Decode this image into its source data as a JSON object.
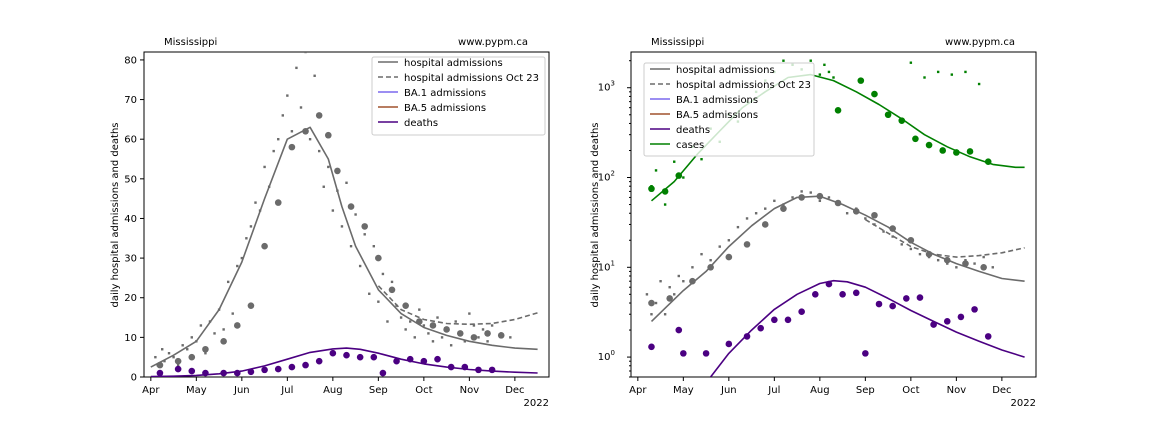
{
  "chart_data": [
    {
      "type": "line",
      "region": "Mississippi",
      "source": "www.pypm.ca",
      "title": "",
      "xlabel": "",
      "ylabel": "daily hospital admissions and deaths",
      "year_label": "2022",
      "scale": "linear",
      "x_ticks": [
        "Apr",
        "May",
        "Jun",
        "Jul",
        "Aug",
        "Sep",
        "Oct",
        "Nov",
        "Dec"
      ],
      "ylim": [
        0,
        82
      ],
      "y_ticks": [
        0,
        10,
        20,
        30,
        40,
        50,
        60,
        70,
        80
      ],
      "legend_position": "top-right",
      "grid": false,
      "legend": [
        {
          "label": "hospital admissions",
          "color": "#6b6b6b",
          "style": "solid"
        },
        {
          "label": "hospital admissions Oct 23",
          "color": "#6b6b6b",
          "style": "dashed"
        },
        {
          "label": "BA.1 admissions",
          "color": "#7b68ee",
          "style": "solid"
        },
        {
          "label": "BA.5 admissions",
          "color": "#a0522d",
          "style": "solid"
        },
        {
          "label": "deaths",
          "color": "#4b0082",
          "style": "solid"
        }
      ],
      "series": [
        {
          "name": "hospital admissions",
          "kind": "line",
          "color": "#6b6b6b",
          "x": [
            0.0,
            0.5,
            1.0,
            1.5,
            2.0,
            2.5,
            3.0,
            3.5,
            3.9,
            4.2,
            4.5,
            5.0,
            5.5,
            6.0,
            6.5,
            7.0,
            7.5,
            8.0,
            8.5
          ],
          "y": [
            2.5,
            5.5,
            9,
            17,
            29,
            45,
            60,
            63,
            55,
            43,
            33,
            22,
            16,
            12.5,
            10.5,
            9,
            8,
            7.3,
            7
          ]
        },
        {
          "name": "hospital admissions Oct 23",
          "kind": "dashed",
          "color": "#6b6b6b",
          "x": [
            5.0,
            5.5,
            6.0,
            6.5,
            7.0,
            7.5,
            8.0,
            8.5
          ],
          "y": [
            23,
            17,
            14.5,
            13.5,
            13.3,
            13.5,
            14.5,
            16.2
          ]
        },
        {
          "name": "deaths",
          "kind": "line",
          "color": "#4b0082",
          "x": [
            0.0,
            0.5,
            1.0,
            1.5,
            2.0,
            2.5,
            3.0,
            3.5,
            4.0,
            4.3,
            4.6,
            5.0,
            5.5,
            6.0,
            6.5,
            7.0,
            7.5,
            8.0,
            8.5
          ],
          "y": [
            0.1,
            0.2,
            0.4,
            0.8,
            1.5,
            2.8,
            4.5,
            6.2,
            7.1,
            7.3,
            7.0,
            6.0,
            4.5,
            3.3,
            2.5,
            1.9,
            1.5,
            1.2,
            1.0
          ]
        },
        {
          "name": "hospital admissions daily",
          "kind": "small-dots",
          "color": "#6b6b6b",
          "x": [
            0.1,
            0.15,
            0.25,
            0.3,
            0.4,
            0.5,
            0.6,
            0.7,
            0.8,
            0.9,
            1.0,
            1.1,
            1.2,
            1.3,
            1.4,
            1.5,
            1.6,
            1.7,
            1.8,
            1.9,
            2.0,
            2.1,
            2.2,
            2.3,
            2.4,
            2.5,
            2.6,
            2.7,
            2.8,
            2.9,
            3.0,
            3.1,
            3.2,
            3.3,
            3.4,
            3.5,
            3.6,
            3.7,
            3.8,
            3.9,
            4.0,
            4.1,
            4.2,
            4.3,
            4.4,
            4.5,
            4.6,
            4.7,
            4.8,
            4.9,
            5.0,
            5.1,
            5.2,
            5.3,
            5.4,
            5.5,
            5.6,
            5.7,
            5.8,
            5.9,
            6.0,
            6.1,
            6.2,
            6.3,
            6.4,
            6.5,
            6.6,
            6.7,
            6.8,
            6.9,
            7.0,
            7.1,
            7.2,
            7.3,
            7.4,
            7.5,
            7.7,
            7.9
          ],
          "y": [
            5,
            3,
            7,
            4,
            6,
            5,
            3,
            8,
            7,
            10,
            9,
            13,
            6,
            14,
            11,
            17,
            12,
            24,
            16,
            28,
            30,
            35,
            38,
            44,
            42,
            53,
            48,
            57,
            60,
            66,
            71,
            62,
            78,
            68,
            82,
            60,
            76,
            57,
            48,
            53,
            42,
            47,
            38,
            49,
            33,
            41,
            28,
            36,
            21,
            33,
            19,
            26,
            14,
            24,
            18,
            15,
            12,
            14,
            10,
            17,
            13,
            11,
            9,
            15,
            10,
            12,
            8,
            14,
            11,
            9,
            16,
            13,
            10,
            12,
            9,
            13,
            11,
            10
          ]
        },
        {
          "name": "hospital admissions weekly",
          "kind": "big-dots",
          "color": "#6b6b6b",
          "x": [
            0.2,
            0.6,
            0.9,
            1.2,
            1.6,
            1.9,
            2.2,
            2.5,
            2.8,
            3.1,
            3.4,
            3.7,
            3.9,
            4.1,
            4.4,
            4.7,
            5.0,
            5.3,
            5.6,
            5.9,
            6.2,
            6.5,
            6.8,
            7.1,
            7.4,
            7.7
          ],
          "y": [
            3,
            4,
            5,
            7,
            9,
            13,
            18,
            33,
            44,
            58,
            62,
            66,
            61,
            52,
            43,
            38,
            30,
            22,
            18,
            14,
            13,
            12,
            11,
            10,
            11,
            10.5
          ]
        },
        {
          "name": "deaths weekly",
          "kind": "big-dots",
          "color": "#4b0082",
          "x": [
            0.2,
            0.6,
            0.9,
            1.2,
            1.6,
            1.9,
            2.2,
            2.5,
            2.8,
            3.1,
            3.4,
            3.7,
            4.0,
            4.3,
            4.6,
            4.9,
            5.1,
            5.4,
            5.7,
            6.0,
            6.3,
            6.6,
            6.9,
            7.2,
            7.5
          ],
          "y": [
            1,
            2,
            1.5,
            1,
            1,
            1,
            1.3,
            1.8,
            2,
            2.5,
            3,
            4,
            6,
            5.5,
            5,
            5,
            1,
            4,
            4.5,
            4,
            4.5,
            2.5,
            2.5,
            1.8,
            1.8
          ]
        }
      ]
    },
    {
      "type": "line",
      "region": "Mississippi",
      "source": "www.pypm.ca",
      "title": "",
      "xlabel": "",
      "ylabel": "daily hospital admissions and deaths",
      "year_label": "2022",
      "scale": "log",
      "x_ticks": [
        "Apr",
        "May",
        "Jun",
        "Jul",
        "Aug",
        "Sep",
        "Oct",
        "Nov",
        "Dec"
      ],
      "ylim": [
        0.6,
        2500
      ],
      "y_ticks": [
        "10^0",
        "10^1",
        "10^2",
        "10^3"
      ],
      "legend_position": "top-left",
      "grid": false,
      "legend": [
        {
          "label": "hospital admissions",
          "color": "#6b6b6b",
          "style": "solid"
        },
        {
          "label": "hospital admissions Oct 23",
          "color": "#6b6b6b",
          "style": "dashed"
        },
        {
          "label": "BA.1 admissions",
          "color": "#7b68ee",
          "style": "solid"
        },
        {
          "label": "BA.5 admissions",
          "color": "#a0522d",
          "style": "solid"
        },
        {
          "label": "deaths",
          "color": "#4b0082",
          "style": "solid"
        },
        {
          "label": "cases",
          "color": "#008000",
          "style": "solid"
        }
      ],
      "series": [
        {
          "name": "cases",
          "kind": "line",
          "color": "#008000",
          "x": [
            0.3,
            0.8,
            1.3,
            1.8,
            2.3,
            2.8,
            3.3,
            3.8,
            4.3,
            4.8,
            5.3,
            5.8,
            6.3,
            6.8,
            7.3,
            7.8,
            8.3,
            8.5
          ],
          "y": [
            55,
            90,
            180,
            330,
            600,
            900,
            1300,
            1400,
            1200,
            900,
            650,
            450,
            300,
            220,
            170,
            140,
            130,
            130
          ]
        },
        {
          "name": "hospital admissions",
          "kind": "line",
          "color": "#6b6b6b",
          "x": [
            0.3,
            0.6,
            1.0,
            1.5,
            2.0,
            2.5,
            3.0,
            3.5,
            4.0,
            4.5,
            5.0,
            5.5,
            6.0,
            6.5,
            7.0,
            7.5,
            8.0,
            8.5
          ],
          "y": [
            2.5,
            3.5,
            5.5,
            9,
            17,
            29,
            45,
            60,
            62,
            50,
            38,
            28,
            19,
            14,
            11,
            9,
            7.5,
            7
          ]
        },
        {
          "name": "hospital admissions Oct 23",
          "kind": "dashed",
          "color": "#6b6b6b",
          "x": [
            5.0,
            5.5,
            6.0,
            6.5,
            7.0,
            7.5,
            8.0,
            8.5
          ],
          "y": [
            34,
            24,
            17,
            14,
            13,
            13.5,
            14.5,
            16.5
          ]
        },
        {
          "name": "deaths",
          "kind": "line",
          "color": "#4b0082",
          "x": [
            1.6,
            2.0,
            2.5,
            3.0,
            3.5,
            4.0,
            4.3,
            4.6,
            5.0,
            5.5,
            6.0,
            6.5,
            7.0,
            7.5,
            8.0,
            8.5
          ],
          "y": [
            0.6,
            1.1,
            2.0,
            3.4,
            5.0,
            6.6,
            7.1,
            6.9,
            6.0,
            4.5,
            3.3,
            2.5,
            1.9,
            1.5,
            1.2,
            1.0
          ]
        },
        {
          "name": "cases daily",
          "kind": "small-dots",
          "color": "#008000",
          "x": [
            0.3,
            0.4,
            0.6,
            0.8,
            1.0,
            1.2,
            1.4,
            1.6,
            1.8,
            2.0,
            2.2,
            2.4,
            2.6,
            2.8,
            3.0,
            3.2,
            3.4,
            3.6,
            3.8,
            4.0,
            4.1,
            4.2,
            4.3,
            6.0,
            6.3,
            6.6,
            6.9,
            7.2,
            7.5
          ],
          "y": [
            80,
            120,
            50,
            150,
            100,
            220,
            160,
            350,
            250,
            500,
            420,
            700,
            900,
            1200,
            1500,
            2000,
            1800,
            1600,
            2000,
            1400,
            1800,
            1500,
            1300,
            1900,
            1300,
            1500,
            1400,
            1500,
            1100
          ]
        },
        {
          "name": "cases weekly",
          "kind": "big-dots",
          "color": "#008000",
          "x": [
            0.3,
            0.6,
            0.9,
            4.4,
            4.9,
            5.2,
            5.5,
            5.8,
            6.1,
            6.4,
            6.7,
            7.0,
            7.3,
            7.7
          ],
          "y": [
            75,
            70,
            105,
            560,
            1200,
            850,
            500,
            430,
            270,
            230,
            200,
            190,
            195,
            150
          ]
        },
        {
          "name": "hospital admissions daily",
          "kind": "small-dots",
          "color": "#6b6b6b",
          "x": [
            0.2,
            0.3,
            0.4,
            0.5,
            0.6,
            0.7,
            0.8,
            0.9,
            1.0,
            1.2,
            1.4,
            1.6,
            1.8,
            2.0,
            2.2,
            2.4,
            2.6,
            2.8,
            3.0,
            3.2,
            3.4,
            3.6,
            3.8,
            4.0,
            4.2,
            4.4,
            4.6,
            4.8,
            5.0,
            5.2,
            5.4,
            5.6,
            5.8,
            6.0,
            6.2,
            6.4,
            6.6,
            6.8,
            7.0,
            7.2,
            7.4,
            7.6,
            7.8
          ],
          "y": [
            5,
            3,
            4,
            7,
            3,
            6,
            5,
            8,
            7,
            10,
            14,
            12,
            17,
            20,
            28,
            35,
            40,
            45,
            55,
            50,
            60,
            70,
            68,
            55,
            60,
            50,
            40,
            45,
            35,
            30,
            25,
            22,
            18,
            16,
            14,
            13,
            12,
            11,
            10,
            12,
            11,
            13,
            10
          ]
        },
        {
          "name": "hospital admissions weekly",
          "kind": "big-dots",
          "color": "#6b6b6b",
          "x": [
            0.3,
            0.7,
            1.2,
            1.6,
            2.0,
            2.4,
            2.8,
            3.2,
            3.6,
            4.0,
            4.4,
            4.8,
            5.2,
            5.6,
            6.0,
            6.4,
            6.8,
            7.2,
            7.6
          ],
          "y": [
            4,
            4.5,
            7,
            10,
            13,
            18,
            30,
            45,
            60,
            62,
            52,
            42,
            38,
            27,
            20,
            14,
            12,
            11,
            10
          ]
        },
        {
          "name": "deaths weekly",
          "kind": "big-dots",
          "color": "#4b0082",
          "x": [
            0.3,
            0.9,
            1.0,
            1.5,
            2.0,
            2.4,
            2.7,
            3.0,
            3.3,
            3.6,
            3.9,
            4.2,
            4.5,
            4.8,
            5.0,
            5.3,
            5.6,
            5.9,
            6.2,
            6.5,
            6.8,
            7.1,
            7.4,
            7.7
          ],
          "y": [
            1.3,
            2.0,
            1.1,
            1.1,
            1.4,
            1.7,
            2.1,
            2.6,
            2.6,
            3.2,
            5.0,
            6.5,
            5.0,
            5.2,
            1.1,
            3.9,
            3.7,
            4.5,
            4.6,
            2.3,
            2.5,
            2.8,
            3.4,
            1.7
          ]
        }
      ]
    }
  ]
}
